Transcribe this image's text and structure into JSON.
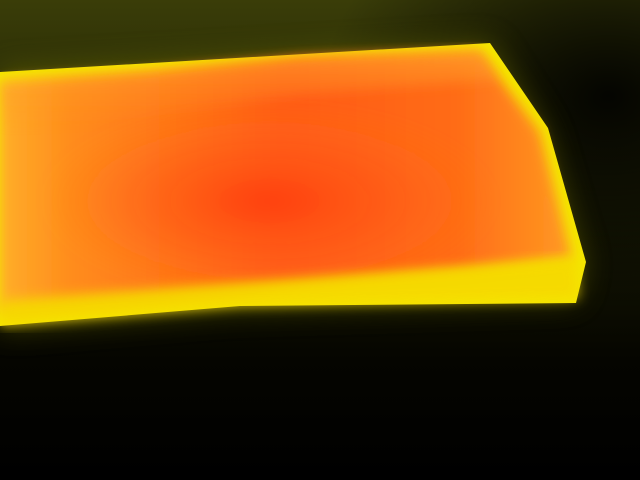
{
  "image": {
    "subject": "thermal-image-heated-strip",
    "palette": {
      "background_dark": "#000000",
      "background_glow": "#2a2c05",
      "edge_yellow": "#f2e400",
      "warm_orange": "#ff9a18",
      "hot_core": "#ff4a14"
    }
  }
}
